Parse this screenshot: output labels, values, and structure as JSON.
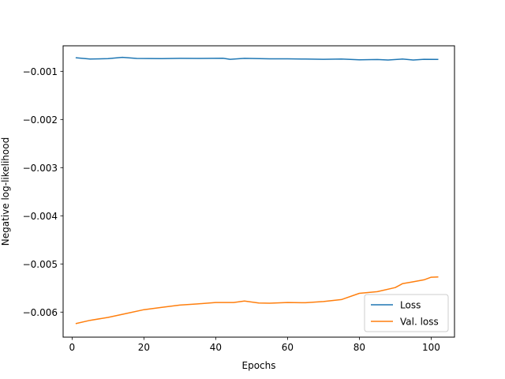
{
  "chart_data": {
    "type": "line",
    "title": "",
    "xlabel": "Epochs",
    "ylabel": "Negative log-likelihood",
    "xlim": [
      -2.5,
      106.5
    ],
    "ylim": [
      -0.00652,
      -0.00047
    ],
    "x_ticks": [
      0,
      20,
      40,
      60,
      80,
      100
    ],
    "x_tick_labels": [
      "0",
      "20",
      "40",
      "60",
      "80",
      "100"
    ],
    "y_ticks": [
      -0.001,
      -0.002,
      -0.003,
      -0.004,
      -0.005,
      -0.006
    ],
    "y_tick_labels": [
      "−0.001",
      "−0.002",
      "−0.003",
      "−0.004",
      "−0.005",
      "−0.006"
    ],
    "grid": false,
    "legend_position": "lower-right",
    "series": [
      {
        "name": "Loss",
        "color": "#1f77b4",
        "points": [
          [
            1,
            -0.000718
          ],
          [
            5,
            -0.000745
          ],
          [
            10,
            -0.000737
          ],
          [
            14,
            -0.00071
          ],
          [
            18,
            -0.000732
          ],
          [
            25,
            -0.000736
          ],
          [
            30,
            -0.000731
          ],
          [
            35,
            -0.000732
          ],
          [
            42,
            -0.000727
          ],
          [
            44,
            -0.00075
          ],
          [
            48,
            -0.00073
          ],
          [
            55,
            -0.00074
          ],
          [
            60,
            -0.00074
          ],
          [
            65,
            -0.000745
          ],
          [
            70,
            -0.00075
          ],
          [
            75,
            -0.000745
          ],
          [
            80,
            -0.00076
          ],
          [
            85,
            -0.000756
          ],
          [
            88,
            -0.000765
          ],
          [
            92,
            -0.000745
          ],
          [
            95,
            -0.000765
          ],
          [
            98,
            -0.00075
          ],
          [
            102,
            -0.000752
          ]
        ]
      },
      {
        "name": "Val. loss",
        "color": "#ff7f0e",
        "points": [
          [
            1,
            -0.00624
          ],
          [
            5,
            -0.00617
          ],
          [
            10,
            -0.00611
          ],
          [
            15,
            -0.00603
          ],
          [
            20,
            -0.00595
          ],
          [
            25,
            -0.0059
          ],
          [
            30,
            -0.005855
          ],
          [
            35,
            -0.00583
          ],
          [
            40,
            -0.0058
          ],
          [
            45,
            -0.0058
          ],
          [
            48,
            -0.00577
          ],
          [
            52,
            -0.00581
          ],
          [
            55,
            -0.005815
          ],
          [
            60,
            -0.0058
          ],
          [
            65,
            -0.005805
          ],
          [
            70,
            -0.00578
          ],
          [
            75,
            -0.00574
          ],
          [
            80,
            -0.00561
          ],
          [
            85,
            -0.005575
          ],
          [
            90,
            -0.00549
          ],
          [
            92,
            -0.00541
          ],
          [
            95,
            -0.00537
          ],
          [
            98,
            -0.00533
          ],
          [
            100,
            -0.005275
          ],
          [
            102,
            -0.00527
          ]
        ]
      }
    ]
  }
}
